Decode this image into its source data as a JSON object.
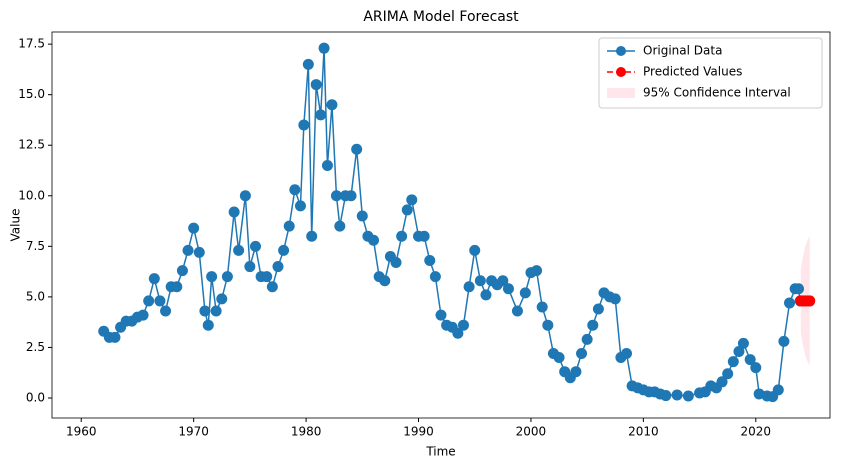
{
  "chart_data": {
    "type": "line",
    "title": "ARIMA Model Forecast",
    "x_label": "Time",
    "y_label": "Value",
    "xlim": [
      1957.4,
      2026.6
    ],
    "ylim": [
      -0.99,
      18.1
    ],
    "xticks": [
      1960,
      1970,
      1980,
      1990,
      2000,
      2010,
      2020
    ],
    "yticks": [
      {
        "value": 0,
        "label": "0.0"
      },
      2.5,
      {
        "value": 5,
        "label": "5.0"
      },
      7.5,
      {
        "value": 10,
        "label": "10.0"
      },
      12.5,
      {
        "value": 15,
        "label": "15.0"
      },
      17.5
    ],
    "legend": "upper right",
    "series": [
      {
        "name": "Original Data",
        "color": "#1f77b4",
        "style": "solid",
        "x": [
          1962.0,
          1962.5,
          1963.0,
          1963.5,
          1964.0,
          1964.5,
          1965.0,
          1965.5,
          1966.0,
          1966.5,
          1967.0,
          1967.5,
          1968.0,
          1968.5,
          1969.0,
          1969.5,
          1970.0,
          1970.5,
          1971.0,
          1971.3,
          1971.6,
          1972.0,
          1972.5,
          1973.0,
          1973.6,
          1974.0,
          1974.6,
          1975.0,
          1975.5,
          1976.0,
          1976.5,
          1977.0,
          1977.5,
          1978.0,
          1978.5,
          1979.0,
          1979.5,
          1979.8,
          1980.2,
          1980.5,
          1980.9,
          1981.3,
          1981.6,
          1981.9,
          1982.3,
          1982.7,
          1983.0,
          1983.5,
          1984.0,
          1984.5,
          1985.0,
          1985.5,
          1986.0,
          1986.5,
          1987.0,
          1987.5,
          1988.0,
          1988.5,
          1989.0,
          1989.4,
          1990.0,
          1990.5,
          1991.0,
          1991.5,
          1992.0,
          1992.5,
          1993.0,
          1993.5,
          1994.0,
          1994.5,
          1995.0,
          1995.5,
          1996.0,
          1996.5,
          1997.0,
          1997.5,
          1998.0,
          1998.8,
          1999.5,
          2000.0,
          2000.5,
          2001.0,
          2001.5,
          2002.0,
          2002.5,
          2003.0,
          2003.5,
          2004.0,
          2004.5,
          2005.0,
          2005.5,
          2006.0,
          2006.5,
          2007.0,
          2007.5,
          2008.0,
          2008.5,
          2009.0,
          2009.5,
          2010.0,
          2010.5,
          2011.0,
          2011.5,
          2012.0,
          2013.0,
          2014.0,
          2015.0,
          2015.5,
          2016.0,
          2016.5,
          2017.0,
          2017.5,
          2018.0,
          2018.5,
          2018.9,
          2019.5,
          2020.0,
          2020.3,
          2021.0,
          2021.5,
          2022.0,
          2022.5,
          2023.0,
          2023.5,
          2023.8,
          2023.95
        ],
        "values": [
          3.3,
          3.0,
          3.0,
          3.5,
          3.8,
          3.8,
          4.0,
          4.1,
          4.8,
          5.9,
          4.8,
          4.3,
          5.5,
          5.5,
          6.3,
          7.3,
          8.4,
          7.2,
          4.3,
          3.6,
          6.0,
          4.3,
          4.9,
          6.0,
          9.2,
          7.3,
          10.0,
          6.5,
          7.5,
          6.0,
          6.0,
          5.5,
          6.5,
          7.3,
          8.5,
          10.3,
          9.5,
          13.5,
          16.5,
          8.0,
          15.5,
          14.0,
          17.3,
          11.5,
          14.5,
          10.0,
          8.5,
          10.0,
          10.0,
          12.3,
          9.0,
          8.0,
          7.8,
          6.0,
          5.8,
          7.0,
          6.7,
          8.0,
          9.3,
          9.8,
          8.0,
          8.0,
          6.8,
          6.0,
          4.1,
          3.6,
          3.5,
          3.2,
          3.6,
          5.5,
          7.3,
          5.8,
          5.1,
          5.8,
          5.6,
          5.8,
          5.4,
          4.3,
          5.2,
          6.2,
          6.3,
          4.5,
          3.6,
          2.2,
          2.0,
          1.3,
          1.0,
          1.3,
          2.2,
          2.9,
          3.6,
          4.4,
          5.2,
          5.0,
          4.9,
          2.0,
          2.2,
          0.6,
          0.5,
          0.4,
          0.3,
          0.3,
          0.2,
          0.12,
          0.15,
          0.1,
          0.25,
          0.3,
          0.6,
          0.5,
          0.8,
          1.2,
          1.8,
          2.3,
          2.7,
          1.9,
          1.5,
          0.2,
          0.1,
          0.07,
          0.4,
          2.8,
          4.7,
          5.4,
          5.4,
          4.8
        ]
      },
      {
        "name": "Predicted Values",
        "color": "#ff0000",
        "style": "dashed",
        "x": [
          2024.0,
          2024.2,
          2024.4,
          2024.6,
          2024.8
        ],
        "values": [
          4.8,
          4.8,
          4.8,
          4.8,
          4.8
        ]
      }
    ],
    "band": {
      "name": "95% Confidence Interval",
      "color": "#ffc0cb",
      "x": [
        2024.0,
        2024.2,
        2024.4,
        2024.6,
        2024.8
      ],
      "lower": [
        3.2,
        2.6,
        2.1,
        1.8,
        1.6
      ],
      "upper": [
        6.4,
        7.0,
        7.5,
        7.8,
        8.0
      ]
    }
  }
}
